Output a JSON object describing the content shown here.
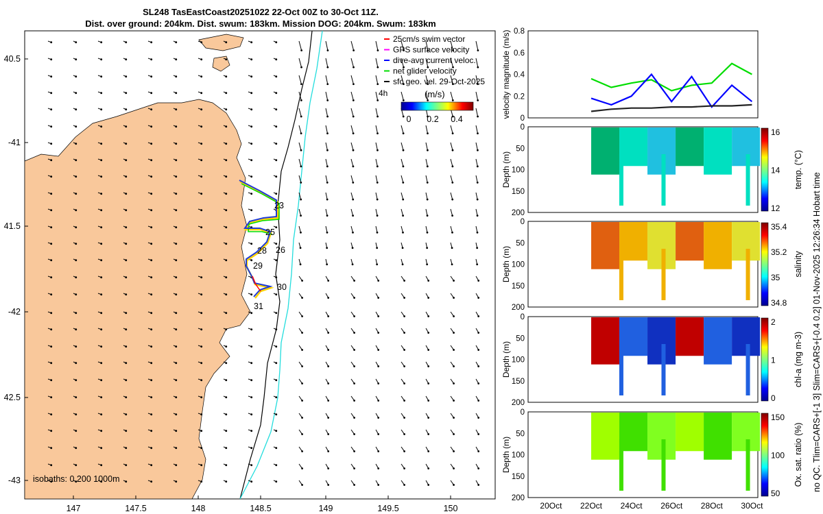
{
  "header": {
    "title_line1": "SL248 TasEastCoast20251022 22-Oct 00Z to 30-Oct 11Z.",
    "title_line2": "Dist. over ground: 204km. Dist. swum: 183km. Mission DOG: 204km. Swum: 183km"
  },
  "map": {
    "lon_ticks": [
      "147",
      "147.5",
      "148",
      "148.5",
      "149",
      "149.5",
      "150"
    ],
    "lat_ticks": [
      "40.5",
      "-41",
      "41.5",
      "-42",
      "42.5",
      "-43"
    ],
    "legend": [
      {
        "label": "25cm/s swim vector",
        "color": "#ff0000"
      },
      {
        "label": "GPS surface velocity",
        "color": "#ff00ff"
      },
      {
        "label": "dive-avg current veloc.",
        "color": "#0000ff"
      },
      {
        "label": "net glider velocity",
        "color": "#00dd00"
      },
      {
        "label": "sfc geo. vel. 29-Oct-2025",
        "color": "#000000"
      }
    ],
    "legend_extra": "4h",
    "colorbar_title": "(m/s)",
    "colorbar_ticks": [
      "0",
      "0.2",
      "0.4"
    ],
    "day_labels": [
      "23",
      "25",
      "26",
      "28",
      "29",
      "30",
      "31"
    ],
    "isobaths_label": "isobaths: 0   200  1000m",
    "land_color": "#f9c89b",
    "track_color": "#ffd400",
    "current_color": "#1e3bd8"
  },
  "panels": {
    "velocity_ylabel": "velocity magnitude (m/s)",
    "velocity_ticks": [
      "0",
      "0.2",
      "0.4",
      "0.6",
      "0.8"
    ],
    "depth_ylabel": "Depth (m)",
    "depth_ticks": [
      "0",
      "50",
      "100",
      "150",
      "200"
    ],
    "time_ticks": [
      "20Oct",
      "22Oct",
      "24Oct",
      "26Oct",
      "28Oct",
      "30Oct"
    ],
    "temp_label": "temp. (°C)",
    "temp_ticks": [
      "12",
      "14",
      "16"
    ],
    "sal_label": "salinity",
    "sal_ticks": [
      "34.8",
      "35",
      "35.2",
      "35.4"
    ],
    "chl_label": "chl-a (mg m-3)",
    "chl_ticks": [
      "0",
      "1",
      "2"
    ],
    "ox_label": "Ox. sat. ratio (%)",
    "ox_ticks": [
      "50",
      "100",
      "150"
    ]
  },
  "side_notes": {
    "line1": "no QC. Tlim=CARS+[-1 3] Slim=CARS+[-0.4 0.2] 01-Nov-2025 12:26:34 Hobart time"
  },
  "chart_data": {
    "type": "line",
    "title": "velocity magnitude",
    "x": [
      "22Oct",
      "23Oct",
      "24Oct",
      "25Oct",
      "26Oct",
      "27Oct",
      "28Oct",
      "29Oct",
      "30Oct"
    ],
    "series": [
      {
        "name": "net glider velocity",
        "color": "#00dd00",
        "values": [
          0.36,
          0.28,
          0.32,
          0.35,
          0.25,
          0.3,
          0.32,
          0.5,
          0.4
        ]
      },
      {
        "name": "dive-avg current veloc.",
        "color": "#0000ff",
        "values": [
          0.18,
          0.12,
          0.2,
          0.4,
          0.15,
          0.38,
          0.1,
          0.3,
          0.15
        ]
      },
      {
        "name": "sfc geo. vel.",
        "color": "#222222",
        "values": [
          0.06,
          0.08,
          0.09,
          0.09,
          0.1,
          0.1,
          0.11,
          0.11,
          0.12
        ]
      }
    ],
    "ylim": [
      0,
      0.8
    ],
    "xlabel": "",
    "ylabel": "velocity magnitude (m/s)"
  }
}
